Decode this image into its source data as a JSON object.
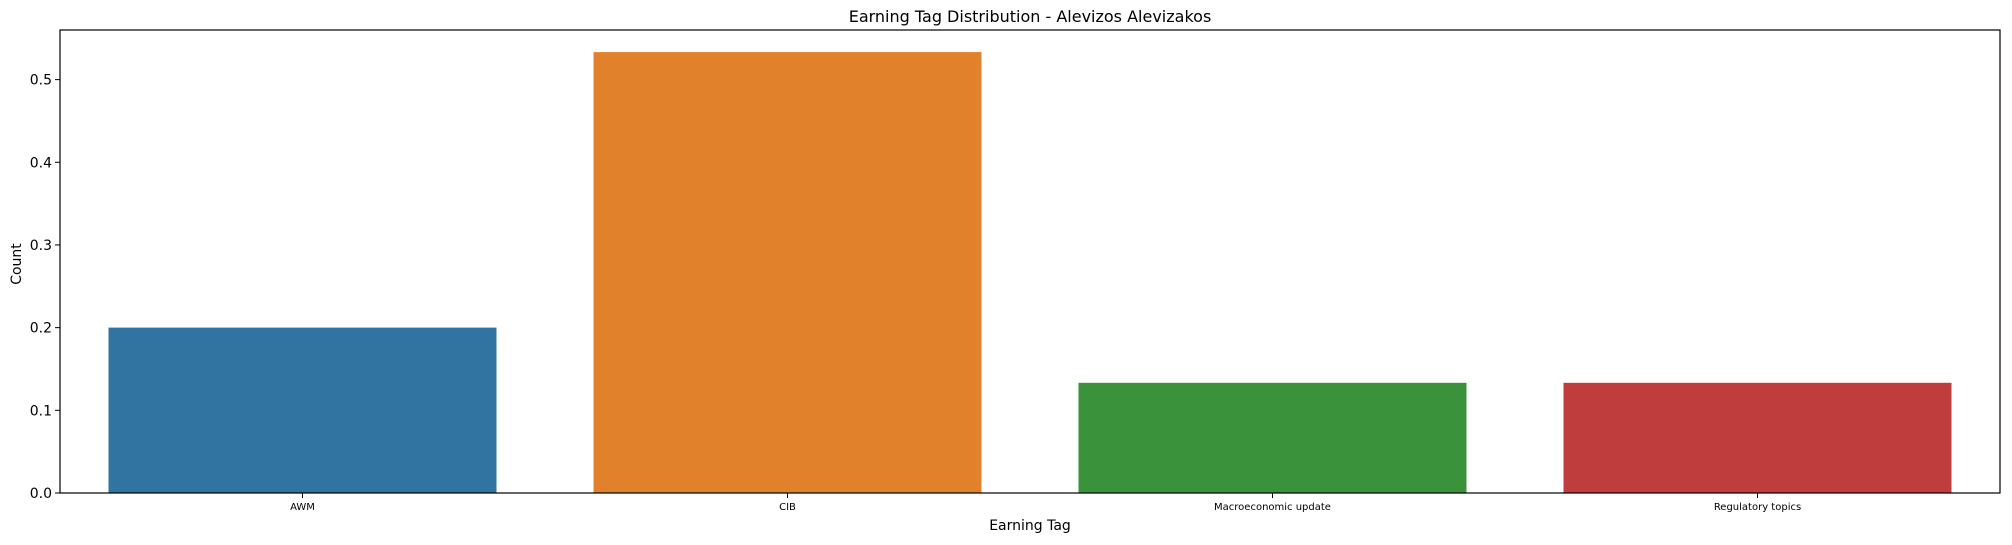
{
  "chart_data": {
    "type": "bar",
    "title": "Earning Tag Distribution - Alevizos Alevizakos",
    "xlabel": "Earning Tag",
    "ylabel": "Count",
    "categories": [
      "AWM",
      "CIB",
      "Macroeconomic update",
      "Regulatory topics"
    ],
    "values": [
      0.2,
      0.5333,
      0.1333,
      0.1333
    ],
    "colors": [
      "#3274a1",
      "#e1812c",
      "#3a923a",
      "#c03d3e"
    ],
    "ylim": [
      0,
      0.56
    ],
    "yticks": [
      0.0,
      0.1,
      0.2,
      0.3,
      0.4,
      0.5
    ],
    "ytick_labels": [
      "0.0",
      "0.1",
      "0.2",
      "0.3",
      "0.4",
      "0.5"
    ],
    "grid": false,
    "legend": "none"
  }
}
